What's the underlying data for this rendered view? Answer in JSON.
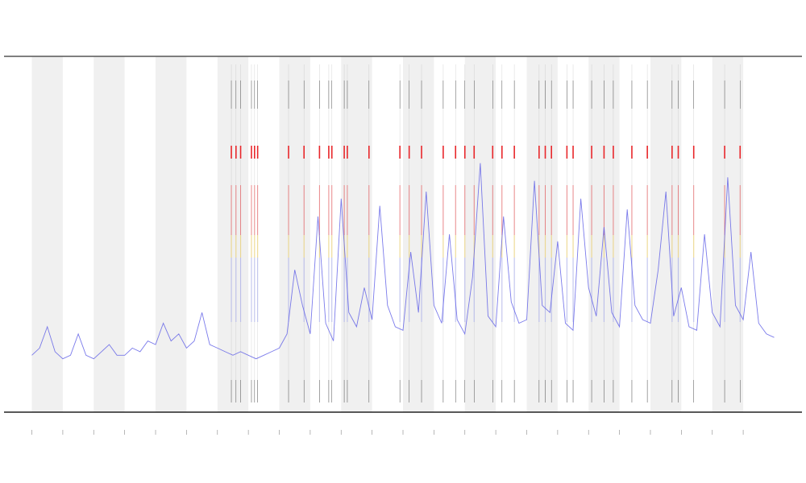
{
  "chart_data": {
    "type": "line",
    "x": [
      0,
      0.25,
      0.5,
      0.75,
      1,
      1.25,
      1.5,
      1.75,
      2,
      2.25,
      2.5,
      2.75,
      3,
      3.25,
      3.5,
      3.75,
      4,
      4.25,
      4.5,
      4.75,
      5,
      5.25,
      5.5,
      5.75,
      6,
      6.25,
      6.5,
      6.75,
      7,
      7.25,
      7.5,
      7.75,
      8,
      8.25,
      8.5,
      8.75,
      9,
      9.25,
      9.5,
      9.75,
      10,
      10.25,
      10.5,
      10.75,
      11,
      11.25,
      11.5,
      11.75,
      12,
      12.25,
      12.5,
      12.75,
      13,
      13.25,
      13.5,
      13.75,
      14,
      14.25,
      14.5,
      14.75,
      15,
      15.25,
      15.5,
      15.75,
      16,
      16.25,
      16.5,
      16.75,
      17,
      17.25,
      17.5,
      17.75,
      18,
      18.25,
      18.5,
      18.75,
      19,
      19.25,
      19.5,
      19.75,
      20,
      20.25,
      20.5,
      20.75,
      21,
      21.25,
      21.5,
      21.75,
      22,
      22.25,
      22.5,
      22.75,
      23,
      23.25,
      23.5,
      23.75,
      24
    ],
    "series": [
      {
        "color": "#5a5ae6",
        "values": [
          16,
          18,
          24,
          17,
          15,
          16,
          22,
          16,
          15,
          17,
          19,
          16,
          16,
          18,
          17,
          20,
          19,
          25,
          20,
          22,
          18,
          20,
          28,
          19,
          18,
          17,
          16,
          17,
          16,
          15,
          16,
          17,
          18,
          22,
          40,
          30,
          22,
          55,
          25,
          20,
          60,
          28,
          24,
          35,
          26,
          58,
          30,
          24,
          23,
          45,
          28,
          62,
          30,
          25,
          50,
          26,
          22,
          38,
          70,
          27,
          24,
          55,
          31,
          25,
          26,
          65,
          30,
          28,
          48,
          25,
          23,
          60,
          35,
          27,
          52,
          28,
          24,
          57,
          30,
          26,
          25,
          40,
          62,
          27,
          35,
          24,
          23,
          50,
          28,
          24,
          66,
          30,
          26,
          45,
          25,
          22,
          21
        ]
      }
    ],
    "events": {
      "color": "#e8262a",
      "x": [
        6.45,
        6.6,
        6.75,
        7.1,
        7.2,
        7.3,
        8.3,
        8.8,
        9.3,
        9.6,
        9.7,
        10.1,
        10.2,
        10.9,
        11.9,
        12.2,
        12.6,
        13.3,
        13.7,
        14.0,
        14.3,
        14.9,
        15.2,
        15.6,
        16.4,
        16.6,
        16.8,
        17.3,
        17.5,
        18.1,
        18.5,
        18.8,
        19.4,
        19.9,
        20.7,
        20.9,
        21.4,
        22.4,
        22.9
      ]
    },
    "xlim": [
      -0.9,
      24.9
    ],
    "xticks": [
      0,
      1,
      2,
      3,
      4,
      5,
      6,
      7,
      8,
      9,
      10,
      11,
      12,
      13,
      14,
      15,
      16,
      17,
      18,
      19,
      20,
      21,
      22,
      23
    ],
    "ylim": [
      0,
      100
    ]
  }
}
